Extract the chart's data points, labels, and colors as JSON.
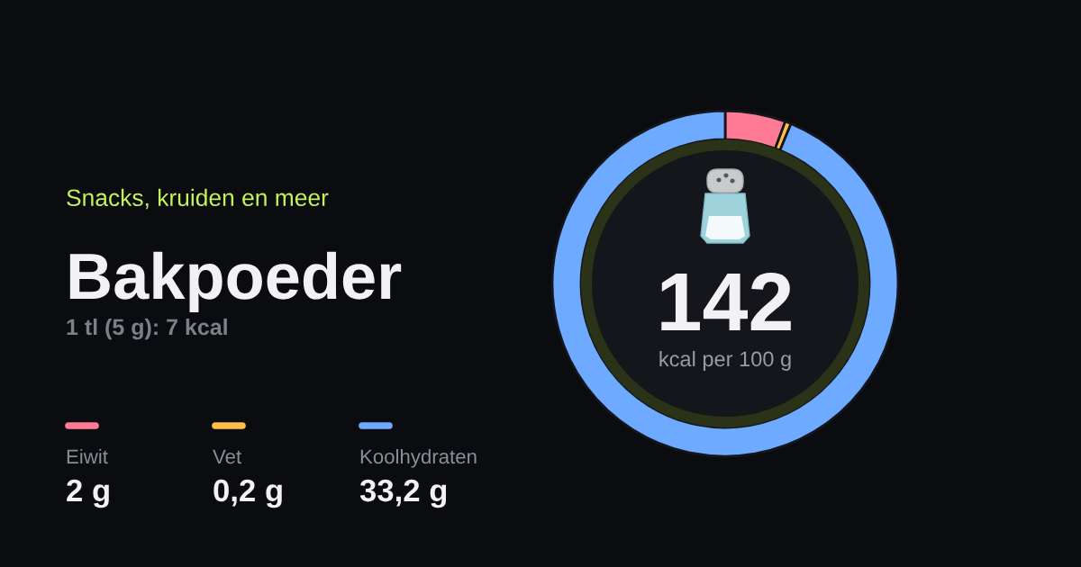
{
  "chart_data": {
    "type": "donut",
    "title": "Bakpoeder",
    "subtitle": "1 tl (5 g): 7 kcal",
    "annotations": [
      "Snacks, kruiden en meer",
      "142",
      "kcal per 100 g"
    ],
    "categories": [
      "Eiwit",
      "Vet",
      "Koolhydraten"
    ],
    "values": [
      2,
      0.2,
      33.2
    ],
    "value_labels": [
      "2 g",
      "0,2 g",
      "33,2 g"
    ],
    "colors": [
      "#ff7b95",
      "#ffbf47",
      "#6eaaff"
    ],
    "legend": "bottom left"
  }
}
